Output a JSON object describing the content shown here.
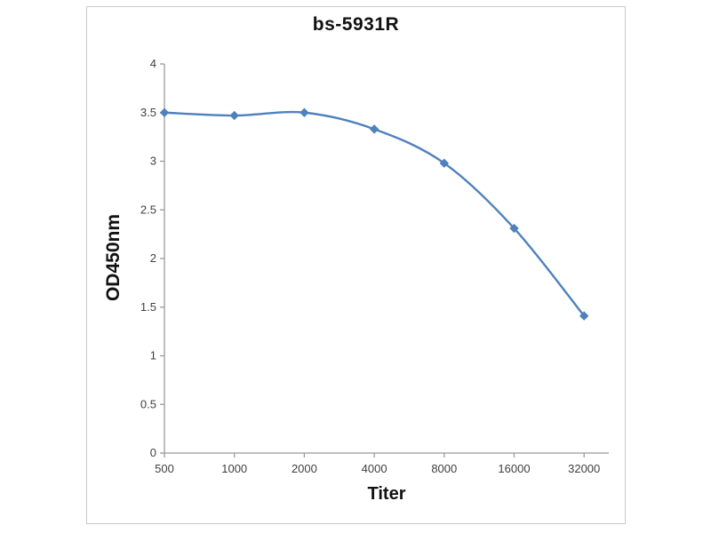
{
  "chart_data": {
    "type": "line",
    "title": "bs-5931R",
    "xlabel": "Titer",
    "ylabel": "OD450nm",
    "categories": [
      "500",
      "1000",
      "2000",
      "4000",
      "8000",
      "16000",
      "32000"
    ],
    "series": [
      {
        "name": "bs-5931R",
        "values": [
          3.5,
          3.47,
          3.5,
          3.33,
          2.98,
          2.31,
          1.41
        ]
      }
    ],
    "ylim": [
      0,
      4
    ],
    "yticks": [
      0,
      0.5,
      1,
      1.5,
      2,
      2.5,
      3,
      3.5,
      4
    ],
    "grid": false,
    "legend": false,
    "line_color": "#4f81bd",
    "axis_color": "#9b9b9b",
    "marker": "diamond"
  }
}
